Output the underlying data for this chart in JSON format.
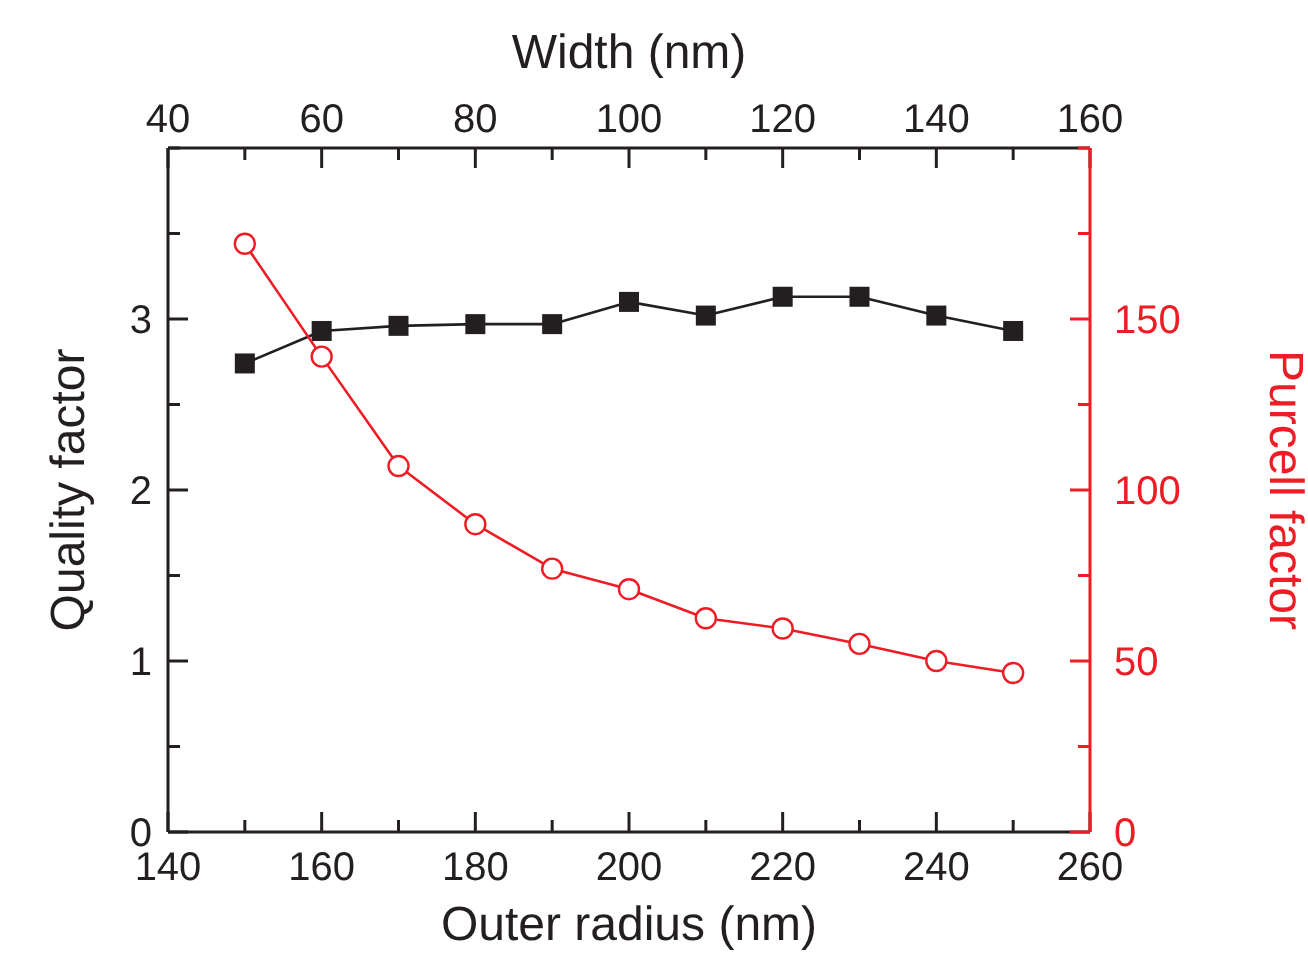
{
  "chart_data": {
    "type": "line",
    "xlabel": "Outer radius (nm)",
    "ylabel": "Quality factor",
    "y2label": "Purcell factor",
    "x2label": "Width (nm)",
    "x": [
      150,
      160,
      170,
      180,
      190,
      200,
      210,
      220,
      230,
      240,
      250
    ],
    "series": [
      {
        "color": "#231f20",
        "marker": "square",
        "values": [
          2.74,
          2.93,
          2.96,
          2.97,
          2.97,
          3.1,
          3.02,
          3.13,
          3.13,
          3.02,
          2.93
        ]
      },
      {
        "color": "#ee1c25",
        "marker": "circle",
        "axis": "y2",
        "values": [
          172,
          139,
          107,
          90,
          77,
          71,
          62.5,
          59.5,
          55,
          50,
          46.5
        ]
      }
    ],
    "xlim": [
      140,
      260
    ],
    "xticks": [
      140,
      {
        "value": 150,
        "label": null
      },
      160,
      {
        "value": 170,
        "label": null
      },
      180,
      {
        "value": 190,
        "label": null
      },
      200,
      {
        "value": 210,
        "label": null
      },
      220,
      {
        "value": 230,
        "label": null
      },
      240,
      {
        "value": 250,
        "label": null
      },
      260
    ],
    "x2lim": [
      40,
      160
    ],
    "x2ticks": [
      40,
      {
        "value": 50,
        "label": null
      },
      60,
      {
        "value": 70,
        "label": null
      },
      80,
      {
        "value": 90,
        "label": null
      },
      100,
      {
        "value": 110,
        "label": null
      },
      120,
      {
        "value": 130,
        "label": null
      },
      140,
      {
        "value": 150,
        "label": null
      },
      160
    ],
    "ylim": [
      0,
      4
    ],
    "yticks": [
      0,
      {
        "value": 0.5,
        "label": null
      },
      1,
      {
        "value": 1.5,
        "label": null
      },
      2,
      {
        "value": 2.5,
        "label": null
      },
      3,
      {
        "value": 3.5,
        "label": null
      },
      {
        "value": 4,
        "label": null
      }
    ],
    "y2lim": [
      0,
      200
    ],
    "y2ticks": [
      0,
      {
        "value": 25,
        "label": null
      },
      50,
      {
        "value": 75,
        "label": null
      },
      100,
      {
        "value": 125,
        "label": null
      },
      150,
      {
        "value": 175,
        "label": null
      },
      {
        "value": 200,
        "label": null
      }
    ],
    "grid": false,
    "line_style": "solid"
  }
}
